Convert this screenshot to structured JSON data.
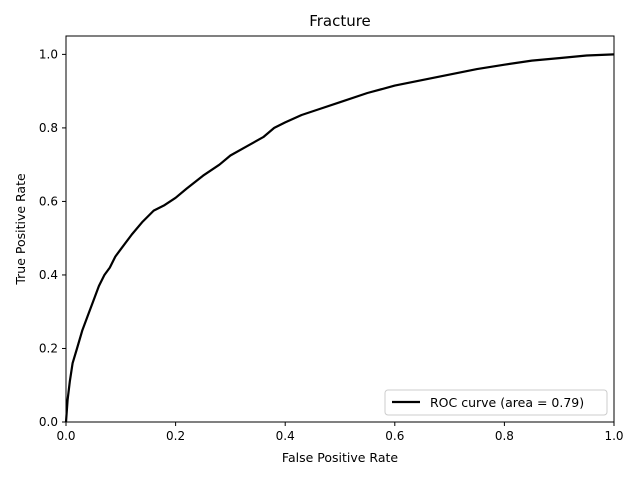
{
  "chart_data": {
    "type": "line",
    "title": "Fracture",
    "xlabel": "False Positive Rate",
    "ylabel": "True Positive Rate",
    "xlim": [
      0.0,
      1.0
    ],
    "ylim": [
      0.0,
      1.05
    ],
    "xticks": [
      "0.0",
      "0.2",
      "0.4",
      "0.6",
      "0.8",
      "1.0"
    ],
    "yticks": [
      "0.0",
      "0.2",
      "0.4",
      "0.6",
      "0.8",
      "1.0"
    ],
    "grid": false,
    "legend_position": "lower-right",
    "series": [
      {
        "name": "ROC curve (area = 0.79)",
        "color": "#000000",
        "x": [
          0.0,
          0.003,
          0.007,
          0.012,
          0.02,
          0.03,
          0.04,
          0.05,
          0.06,
          0.07,
          0.08,
          0.09,
          0.1,
          0.12,
          0.14,
          0.16,
          0.18,
          0.2,
          0.22,
          0.25,
          0.28,
          0.3,
          0.33,
          0.36,
          0.38,
          0.4,
          0.43,
          0.46,
          0.5,
          0.55,
          0.6,
          0.65,
          0.7,
          0.75,
          0.8,
          0.85,
          0.9,
          0.95,
          1.0
        ],
        "y": [
          0.0,
          0.06,
          0.11,
          0.16,
          0.2,
          0.25,
          0.29,
          0.33,
          0.37,
          0.4,
          0.42,
          0.45,
          0.47,
          0.51,
          0.545,
          0.575,
          0.59,
          0.61,
          0.635,
          0.67,
          0.7,
          0.725,
          0.75,
          0.775,
          0.8,
          0.815,
          0.835,
          0.85,
          0.87,
          0.895,
          0.915,
          0.93,
          0.945,
          0.96,
          0.972,
          0.983,
          0.99,
          0.997,
          1.0
        ]
      }
    ]
  }
}
